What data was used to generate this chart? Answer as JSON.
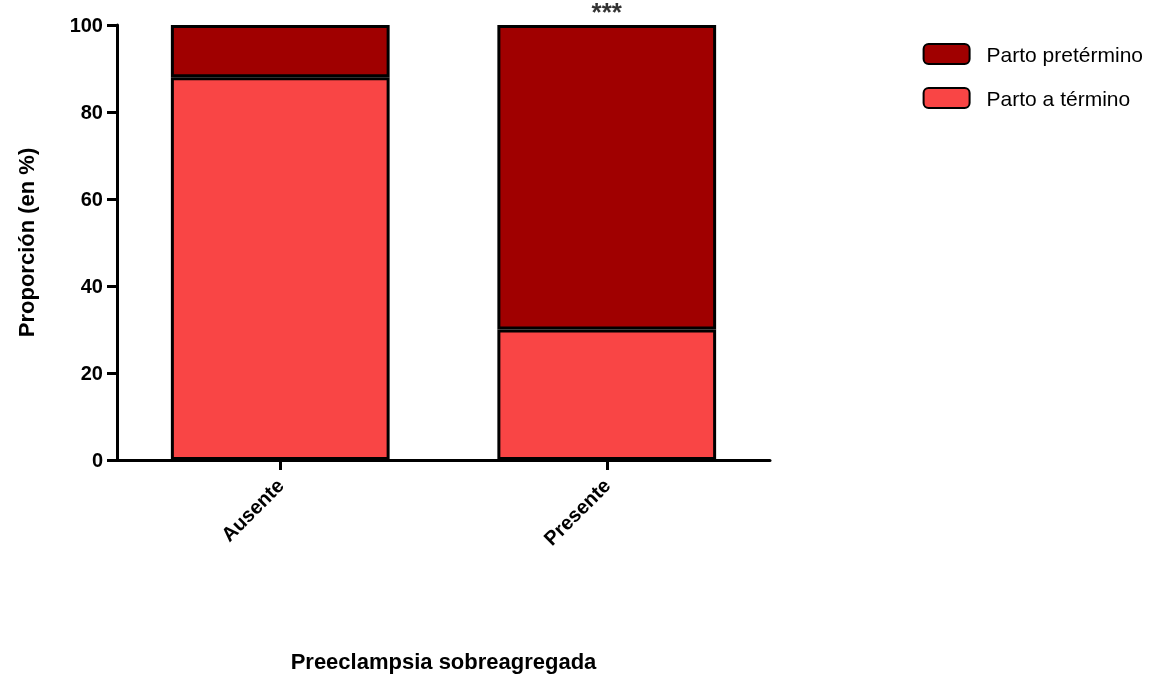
{
  "chart_data": {
    "type": "bar",
    "stacked": true,
    "xlabel": "Preeclampsia sobreagregada",
    "ylabel": "Proporción (en %)",
    "categories": [
      "Ausente",
      "Presente"
    ],
    "series": [
      {
        "name": "Parto a término",
        "color": "#f94545",
        "values": [
          88,
          30
        ]
      },
      {
        "name": "Parto pretérmino",
        "color": "#a00000",
        "values": [
          12,
          70
        ]
      }
    ],
    "ylim": [
      0,
      100
    ],
    "yticks": [
      0,
      20,
      40,
      60,
      80,
      100
    ],
    "grid": false,
    "legend": "top right",
    "annotations": [
      {
        "text": "***",
        "x": "Presente",
        "y": 100
      }
    ]
  }
}
